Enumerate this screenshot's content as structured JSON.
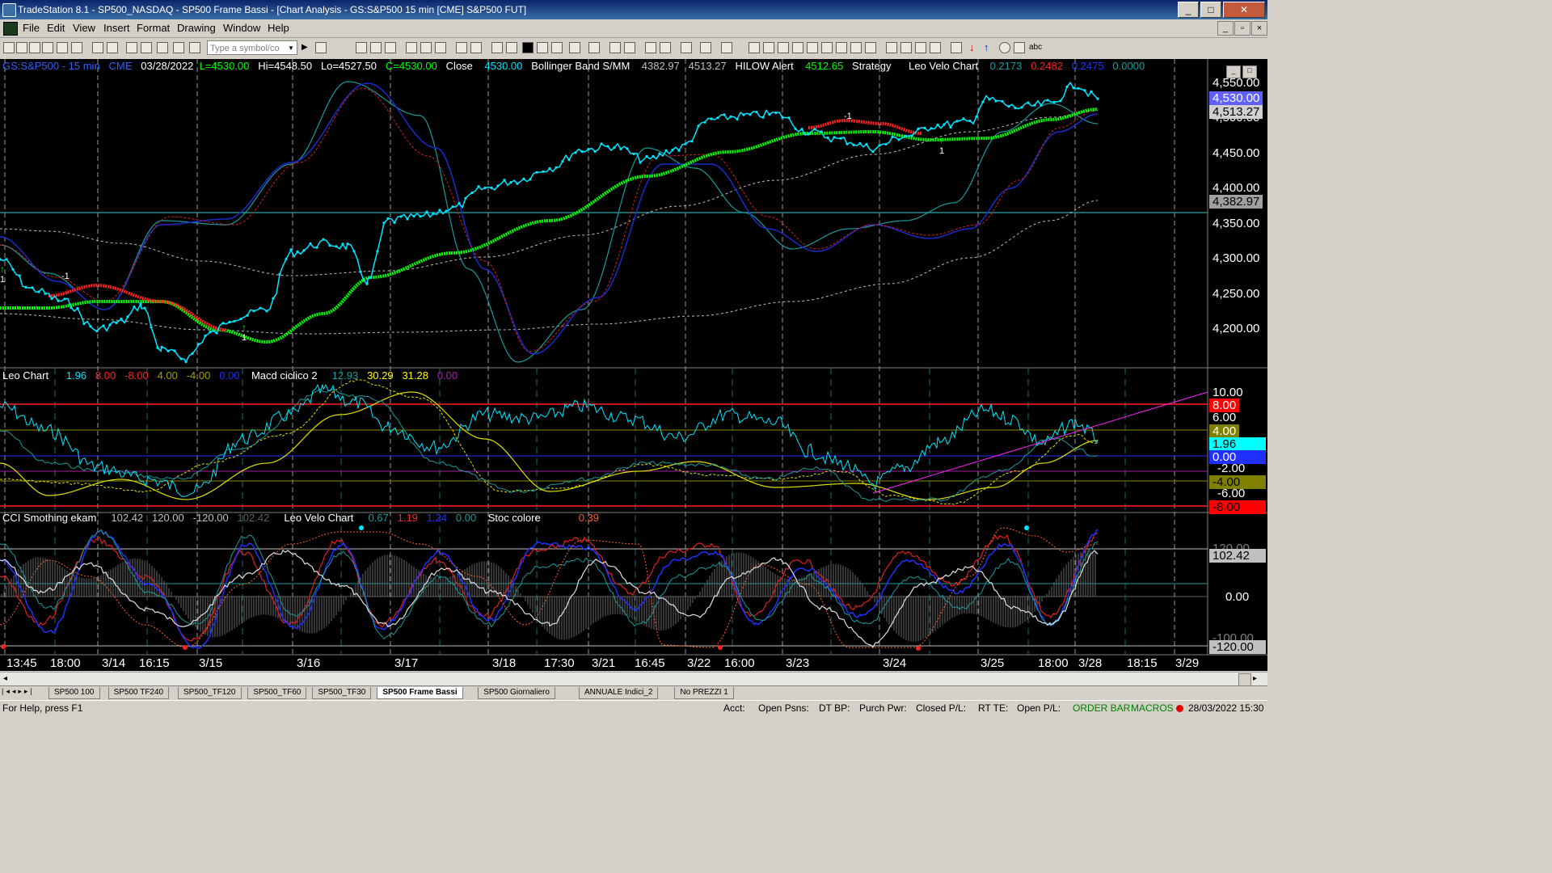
{
  "window": {
    "title": "TradeStation 8.1 - SP500_NASDAQ - SP500 Frame Bassi - [Chart Analysis - GS:S&P500  15 min  [CME] S&P500 FUT]",
    "min": "_",
    "max": "□",
    "close": "✕"
  },
  "menu": [
    "File",
    "Edit",
    "View",
    "Insert",
    "Format",
    "Drawing",
    "Window",
    "Help"
  ],
  "toolbar": {
    "symbol_placeholder": "Type a symbol/co",
    "abc": "abc"
  },
  "chart": {
    "header": {
      "symbol": "GS:S&P500 - 15 min",
      "exchange": "CME",
      "date": "03/28/2022",
      "last": "L=4530.00",
      "hi": "Hi=4548.50",
      "lo": "Lo=4527.50",
      "close": "C=4530.00",
      "close_lbl": "Close",
      "close_val": "4530.00",
      "boll_lbl": "Bollinger Band S/MM",
      "boll_v1": "4382.97",
      "boll_v2": "4513.27",
      "hilow_lbl": "HILOW Alert",
      "hilow_val": "4512.65",
      "strategy_lbl": "Strategy",
      "velo_lbl": "Leo Velo Chart",
      "velo_v1": "0.2173",
      "velo_v2": "0.2482",
      "velo_v3": "0.2475",
      "velo_v4": "0.0000"
    },
    "panel2": {
      "name": "Leo Chart",
      "v1": "1.96",
      "v2": "8.00",
      "v3": "-8.00",
      "v4": "4.00",
      "v5": "-4.00",
      "v6": "0.00",
      "macd_lbl": "Macd ciclico 2",
      "m1": "12.93",
      "m2": "30.29",
      "m3": "31.28",
      "m4": "0.00"
    },
    "panel3": {
      "name": "CCI Smothing ekam",
      "c1": "102.42",
      "c2": "120.00",
      "c3": "-120.00",
      "c4": "102.42",
      "velo_lbl": "Leo Velo Chart",
      "v1": "0.67",
      "v2": "1.19",
      "v3": "1.24",
      "v4": "0.00",
      "stoc_lbl": "Stoc colore",
      "stoc_val": "0.39"
    },
    "price_axis": [
      "4,550.00",
      "4,500.00",
      "4,450.00",
      "4,400.00",
      "4,350.00",
      "4,300.00",
      "4,250.00",
      "4,200.00"
    ],
    "price_boxes": [
      "4,530.00",
      "4,513.27",
      "4,382.97"
    ],
    "panel2_axis": [
      "10.00",
      "8.00",
      "6.00",
      "4.00",
      "1.96",
      "0.00",
      "-2.00",
      "-4.00",
      "-6.00",
      "-8.00"
    ],
    "panel3_axis": [
      "120.00",
      "102.42",
      "0.00",
      "-100.00",
      "-120.00"
    ],
    "time_axis": [
      "13:45",
      "18:00",
      "3/14",
      "16:15",
      "3/15",
      "3/16",
      "3/17",
      "3/18",
      "17:30",
      "3/21",
      "16:45",
      "3/22",
      "16:00",
      "3/23",
      "3/24",
      "3/25",
      "18:00",
      "3/28",
      "18:15",
      "3/29"
    ],
    "markers": {
      "m1": "-1",
      "m2": "1",
      "m3": "-1",
      "m4": "1",
      "m5": "1"
    }
  },
  "tabs": [
    "SP500 100",
    "SP500 TF240",
    "SP500_TF120",
    "SP500_TF60",
    "SP500_TF30",
    "SP500 Frame Bassi",
    "SP500 Giornaliero",
    "ANNUALE Indici_2",
    "No PREZZI 1"
  ],
  "active_tab": "SP500 Frame Bassi",
  "status": {
    "help": "For Help, press F1",
    "acct": "Acct:",
    "open_psns": "Open Psns:",
    "dt_bp": "DT BP:",
    "purch_pwr": "Purch Pwr:",
    "closed_pl": "Closed P/L:",
    "rt_te": "RT TE:",
    "open_pl": "Open P/L:",
    "order_bar": "ORDER BAR",
    "macros": "MACROS",
    "datetime": "28/03/2022 15:30"
  },
  "colors": {
    "cyan": "#00ffff",
    "green": "#00ff00",
    "red": "#ff2020",
    "blue": "#2030ff",
    "yellow": "#ffff00",
    "magenta": "#ff00ff",
    "teal": "#20a0a0"
  }
}
